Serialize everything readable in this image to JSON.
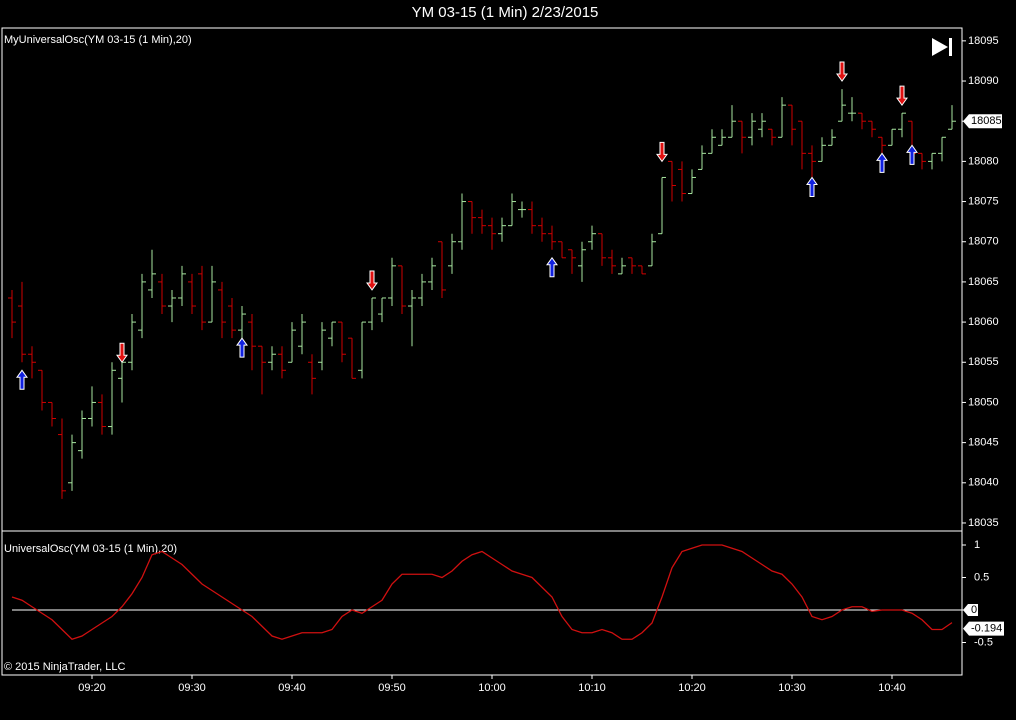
{
  "chart_data": {
    "type": "ohlc",
    "title": "YM 03-15 (1 Min)  2/23/2015",
    "price_panel_label": "MyUniversalOsc(YM 03-15 (1 Min),20)",
    "osc_panel_label": "UniversalOsc(YM 03-15 (1 Min),20)",
    "copyright": "© 2015 NinjaTrader, LLC",
    "up_color": "#a8e6a0",
    "down_color": "#d00000",
    "osc_color": "#d01010",
    "xlim": [
      551,
      647
    ],
    "xticks": [
      {
        "value": 560,
        "label": "09:20"
      },
      {
        "value": 570,
        "label": "09:30"
      },
      {
        "value": 580,
        "label": "09:40"
      },
      {
        "value": 590,
        "label": "09:50"
      },
      {
        "value": 600,
        "label": "10:00"
      },
      {
        "value": 610,
        "label": "10:10"
      },
      {
        "value": 620,
        "label": "10:20"
      },
      {
        "value": 630,
        "label": "10:30"
      },
      {
        "value": 640,
        "label": "10:40"
      }
    ],
    "ylim": [
      18034,
      18096.6
    ],
    "yticks": [
      18035,
      18040,
      18045,
      18050,
      18055,
      18060,
      18065,
      18070,
      18075,
      18080,
      18085,
      18090,
      18095
    ],
    "y2lim": [
      -1,
      1.2
    ],
    "y2ticks": [
      -0.5,
      0,
      0.5,
      1
    ],
    "x": [
      552,
      553,
      554,
      555,
      556,
      557,
      558,
      559,
      560,
      561,
      562,
      563,
      564,
      565,
      566,
      567,
      568,
      569,
      570,
      571,
      572,
      573,
      574,
      575,
      576,
      577,
      578,
      579,
      580,
      581,
      582,
      583,
      584,
      585,
      586,
      587,
      588,
      589,
      590,
      591,
      592,
      593,
      594,
      595,
      596,
      597,
      598,
      599,
      600,
      601,
      602,
      603,
      604,
      605,
      606,
      607,
      608,
      609,
      610,
      611,
      612,
      613,
      614,
      615,
      616,
      617,
      618,
      619,
      620,
      621,
      622,
      623,
      624,
      625,
      626,
      627,
      628,
      629,
      630,
      631,
      632,
      633,
      634,
      635,
      636,
      637,
      638,
      639,
      640,
      641,
      642,
      643,
      644,
      645,
      646
    ],
    "bars": [
      [
        18063,
        18064,
        18058,
        18060
      ],
      [
        18062,
        18065,
        18055,
        18056
      ],
      [
        18056,
        18057,
        18053,
        18055
      ],
      [
        18054,
        18054,
        18049,
        18050
      ],
      [
        18050,
        18050,
        18047,
        18048
      ],
      [
        18046,
        18048,
        18038,
        18039
      ],
      [
        18040,
        18046,
        18039,
        18045
      ],
      [
        18044,
        18049,
        18043,
        18048
      ],
      [
        18048,
        18052,
        18047,
        18050
      ],
      [
        18050,
        18051,
        18046,
        18047
      ],
      [
        18047,
        18055,
        18046,
        18054
      ],
      [
        18053,
        18055,
        18050,
        18055
      ],
      [
        18055,
        18061,
        18054,
        18060
      ],
      [
        18059,
        18066,
        18058,
        18065
      ],
      [
        18064,
        18069,
        18063,
        18066
      ],
      [
        18065,
        18066,
        18061,
        18062
      ],
      [
        18062,
        18064,
        18060,
        18063
      ],
      [
        18063,
        18067,
        18062,
        18066
      ],
      [
        18065,
        18066,
        18061,
        18062
      ],
      [
        18066,
        18067,
        18059,
        18060
      ],
      [
        18060,
        18067,
        18060,
        18065
      ],
      [
        18064,
        18065,
        18058,
        18060
      ],
      [
        18062,
        18063,
        18058,
        18059
      ],
      [
        18059,
        18062,
        18058,
        18061
      ],
      [
        18060,
        18061,
        18054,
        18057
      ],
      [
        18057,
        18057,
        18051,
        18055
      ],
      [
        18055,
        18057,
        18054,
        18056
      ],
      [
        18056,
        18057,
        18053,
        18054
      ],
      [
        18055,
        18060,
        18055,
        18059
      ],
      [
        18057,
        18061,
        18056,
        18060
      ],
      [
        18055,
        18056,
        18051,
        18053
      ],
      [
        18055,
        18060,
        18054,
        18059
      ],
      [
        18058,
        18060,
        18057,
        18060
      ],
      [
        18060,
        18060,
        18055,
        18056
      ],
      [
        18058,
        18058,
        18053,
        18053
      ],
      [
        18054,
        18060,
        18053,
        18060
      ],
      [
        18060,
        18063,
        18059,
        18063
      ],
      [
        18061,
        18063,
        18060,
        18063
      ],
      [
        18063,
        18068,
        18062,
        18067
      ],
      [
        18067,
        18067,
        18061,
        18062
      ],
      [
        18062,
        18064,
        18057,
        18063
      ],
      [
        18063,
        18066,
        18062,
        18065
      ],
      [
        18065,
        18068,
        18064,
        18067
      ],
      [
        18070,
        18070,
        18063,
        18064
      ],
      [
        18067,
        18071,
        18066,
        18070
      ],
      [
        18070,
        18076,
        18069,
        18075
      ],
      [
        18075,
        18075,
        18071,
        18073
      ],
      [
        18073,
        18074,
        18071,
        18072
      ],
      [
        18072,
        18073,
        18069,
        18071
      ],
      [
        18071,
        18073,
        18070,
        18072
      ],
      [
        18072,
        18076,
        18072,
        18075
      ],
      [
        18074,
        18075,
        18073,
        18074
      ],
      [
        18074,
        18075,
        18071,
        18072
      ],
      [
        18072,
        18073,
        18070,
        18071
      ],
      [
        18071,
        18072,
        18069,
        18070
      ],
      [
        18070,
        18070,
        18068,
        18068
      ],
      [
        18069,
        18069,
        18066,
        18068
      ],
      [
        18067,
        18070,
        18065,
        18069
      ],
      [
        18070,
        18072,
        18069,
        18071
      ],
      [
        18071,
        18071,
        18067,
        18068
      ],
      [
        18068,
        18069,
        18066,
        18067
      ],
      [
        18066,
        18068,
        18066,
        18067
      ],
      [
        18068,
        18068,
        18066,
        18067
      ],
      [
        18067,
        18067,
        18066,
        18066
      ],
      [
        18067,
        18071,
        18067,
        18070
      ],
      [
        18071,
        18078,
        18071,
        18078
      ],
      [
        18080,
        18080,
        18075,
        18077
      ],
      [
        18079,
        18080,
        18075,
        18076
      ],
      [
        18076,
        18079,
        18076,
        18078
      ],
      [
        18079,
        18082,
        18079,
        18081
      ],
      [
        18081,
        18084,
        18081,
        18083
      ],
      [
        18082,
        18084,
        18082,
        18083
      ],
      [
        18083,
        18087,
        18083,
        18085
      ],
      [
        18085,
        18085,
        18081,
        18083
      ],
      [
        18083,
        18086,
        18082,
        18085
      ],
      [
        18084,
        18086,
        18083,
        18085
      ],
      [
        18084,
        18084,
        18082,
        18083
      ],
      [
        18083,
        18088,
        18083,
        18087
      ],
      [
        18087,
        18087,
        18082,
        18084
      ],
      [
        18085,
        18085,
        18079,
        18081
      ],
      [
        18081,
        18082,
        18078,
        18080
      ],
      [
        18080,
        18083,
        18080,
        18082
      ],
      [
        18082,
        18084,
        18082,
        18083
      ],
      [
        18085,
        18089,
        18085,
        18087
      ],
      [
        18086,
        18088,
        18085,
        18086
      ],
      [
        18086,
        18086,
        18084,
        18085
      ],
      [
        18085,
        18085,
        18083,
        18084
      ],
      [
        18083,
        18083,
        18081,
        18082
      ],
      [
        18082,
        18084,
        18082,
        18084
      ],
      [
        18084,
        18086,
        18083,
        18086
      ],
      [
        18085,
        18085,
        18080,
        18081
      ],
      [
        18081,
        18081,
        18079,
        18080
      ],
      [
        18080,
        18081,
        18079,
        18081
      ],
      [
        18081,
        18083,
        18080,
        18083
      ],
      [
        18084,
        18087,
        18084,
        18085
      ]
    ],
    "osc": [
      0.2,
      0.15,
      0.05,
      -0.05,
      -0.15,
      -0.3,
      -0.45,
      -0.4,
      -0.3,
      -0.2,
      -0.1,
      0.05,
      0.25,
      0.5,
      0.85,
      0.9,
      0.8,
      0.7,
      0.55,
      0.4,
      0.3,
      0.2,
      0.1,
      0.0,
      -0.1,
      -0.25,
      -0.4,
      -0.45,
      -0.4,
      -0.35,
      -0.35,
      -0.35,
      -0.3,
      -0.1,
      0.0,
      -0.05,
      0.05,
      0.15,
      0.4,
      0.55,
      0.55,
      0.55,
      0.55,
      0.5,
      0.6,
      0.75,
      0.85,
      0.9,
      0.8,
      0.7,
      0.6,
      0.55,
      0.5,
      0.35,
      0.2,
      -0.1,
      -0.3,
      -0.35,
      -0.35,
      -0.3,
      -0.35,
      -0.45,
      -0.45,
      -0.35,
      -0.2,
      0.2,
      0.65,
      0.9,
      0.95,
      1.0,
      1.0,
      1.0,
      0.95,
      0.9,
      0.8,
      0.7,
      0.6,
      0.55,
      0.4,
      0.2,
      -0.1,
      -0.15,
      -0.1,
      0.0,
      0.05,
      0.05,
      -0.02,
      0,
      0,
      0,
      -0.05,
      -0.15,
      -0.3,
      -0.3,
      -0.194
    ],
    "up_arrows": [
      {
        "x": 553,
        "y": 18054
      },
      {
        "x": 575,
        "y": 18058
      },
      {
        "x": 606,
        "y": 18068
      },
      {
        "x": 632,
        "y": 18078
      },
      {
        "x": 639,
        "y": 18081
      },
      {
        "x": 642,
        "y": 18082
      }
    ],
    "down_arrows": [
      {
        "x": 563,
        "y": 18055
      },
      {
        "x": 588,
        "y": 18064
      },
      {
        "x": 617,
        "y": 18080
      },
      {
        "x": 635,
        "y": 18090
      },
      {
        "x": 641,
        "y": 18087
      }
    ]
  }
}
